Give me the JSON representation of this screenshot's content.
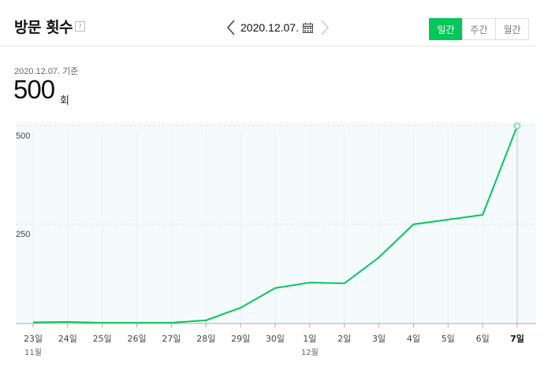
{
  "header": {
    "title": "방문 횟수",
    "help_label": "?",
    "date": "2020.12.07.",
    "tabs": [
      {
        "label": "일간",
        "active": true
      },
      {
        "label": "주간",
        "active": false
      },
      {
        "label": "월간",
        "active": false
      }
    ]
  },
  "summary": {
    "as_of": "2020.12.07. 기준",
    "value": "500",
    "unit": "회"
  },
  "colors": {
    "accent": "#03c75a",
    "plot_bg": "#f5fbfd",
    "grid": "#dde6ea"
  },
  "chart_data": {
    "type": "line",
    "x": [
      "23일",
      "24일",
      "25일",
      "26일",
      "27일",
      "28일",
      "29일",
      "30일",
      "1일",
      "2일",
      "3일",
      "4일",
      "5일",
      "6일",
      "7일"
    ],
    "month_labels": [
      {
        "index": 0,
        "label": "11월"
      },
      {
        "index": 8,
        "label": "12월"
      }
    ],
    "highlight_index": 14,
    "series": [
      {
        "values": [
          1,
          2,
          0,
          0,
          0,
          6,
          38,
          88,
          102,
          100,
          166,
          250,
          262,
          274,
          500
        ]
      }
    ],
    "yticks": [
      500,
      250
    ],
    "ylim": [
      0,
      530
    ]
  }
}
